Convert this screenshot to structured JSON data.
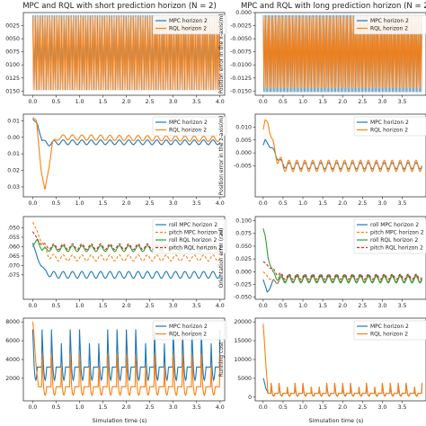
{
  "figure": {
    "title_left": "MPC and RQL with short prediction horizon (N = 2)",
    "title_right": "MPC and RQL with long prediction horizon (N = 2)",
    "xlabel": "Simulation time (s)"
  },
  "colors": {
    "blue": "#1f77b4",
    "orange": "#ff7f0e",
    "green": "#2ca02c",
    "red": "#d62728"
  },
  "chart_data": [
    {
      "id": "p0",
      "type": "line",
      "xlim": [
        -0.2,
        4.1
      ],
      "ylim": [
        -0.0158,
        -0.0
      ],
      "ylabel": "",
      "xticks": [
        0.0,
        0.5,
        1.0,
        1.5,
        2.0,
        2.5,
        3.0,
        3.5,
        4.0
      ],
      "xtick_labels": [
        "0.0",
        "0.5",
        "1.0",
        "1.5",
        "2.0",
        "2.5",
        "3.0",
        "3.5",
        "4.0"
      ],
      "yticks": [
        -0.0025,
        -0.005,
        -0.0075,
        -0.01,
        -0.0125,
        -0.015
      ],
      "ytick_labels": [
        "0025",
        "0050",
        "0075",
        "0100",
        "0125",
        "0150"
      ],
      "legend": "top-right",
      "series": [
        {
          "name": "MPC horizon 2",
          "color": "blue",
          "style": "solid",
          "kind": "band",
          "x": [
            0,
            4
          ],
          "lo": -0.0148,
          "hi": -0.0005
        },
        {
          "name": "RQL horizon 2",
          "color": "orange",
          "style": "solid",
          "kind": "band",
          "x": [
            0,
            4
          ],
          "lo": -0.0148,
          "hi": -0.0008
        }
      ]
    },
    {
      "id": "p1",
      "type": "line",
      "xlim": [
        -0.2,
        4.1
      ],
      "ylim": [
        -0.0158,
        0.0
      ],
      "ylabel": "Position error in the x-axis(m)",
      "xticks": [
        0.0,
        0.5,
        1.0,
        1.5,
        2.0,
        2.5,
        3.0,
        3.5
      ],
      "xtick_labels": [
        "0.0",
        "0.5",
        "1.0",
        "1.5",
        "2.0",
        "2.5",
        "3.0",
        "3.5"
      ],
      "yticks": [
        0.0,
        -0.0025,
        -0.005,
        -0.0075,
        -0.01,
        -0.0125,
        -0.015
      ],
      "ytick_labels": [
        "0.000",
        "-0.0025",
        "-0.0050",
        "-0.0075",
        "-0.0100",
        "-0.0125",
        "-0.0150"
      ],
      "legend": "top-right",
      "series": [
        {
          "name": "MPC horizon 2",
          "color": "blue",
          "style": "solid",
          "kind": "band",
          "x": [
            0,
            4
          ],
          "lo": -0.0152,
          "hi": -0.0005
        },
        {
          "name": "RQL horizon 2",
          "color": "orange",
          "style": "solid",
          "kind": "band",
          "x": [
            0,
            4
          ],
          "lo": -0.0145,
          "hi": -0.0008
        }
      ]
    },
    {
      "id": "p2",
      "type": "line",
      "xlim": [
        -0.2,
        4.1
      ],
      "ylim": [
        -0.036,
        0.014
      ],
      "ylabel": "",
      "xticks": [
        0.0,
        0.5,
        1.0,
        1.5,
        2.0,
        2.5,
        3.0,
        3.5,
        4.0
      ],
      "xtick_labels": [
        "0.0",
        "0.5",
        "1.0",
        "1.5",
        "2.0",
        "2.5",
        "3.0",
        "3.5",
        "4.0"
      ],
      "yticks": [
        0.01,
        0.0,
        -0.01,
        -0.02,
        -0.03
      ],
      "ytick_labels": [
        "0.01",
        "0.00",
        "0.01",
        "0.02",
        "0.03"
      ],
      "legend": "top-right",
      "series": [
        {
          "name": "MPC horizon 2",
          "color": "blue",
          "style": "solid",
          "kind": "osc",
          "x": [
            0,
            0.1,
            0.2,
            0.35,
            0.5,
            4.0
          ],
          "y": [
            0.011,
            0.008,
            -0.002,
            -0.004,
            -0.003,
            -0.003
          ],
          "amp": 0.0014,
          "period": 0.2
        },
        {
          "name": "RQL horizon 2",
          "color": "orange",
          "style": "solid",
          "kind": "osc",
          "x": [
            0,
            0.08,
            0.18,
            0.26,
            0.33,
            0.42,
            0.55,
            4.0
          ],
          "y": [
            0.012,
            0.01,
            -0.02,
            -0.033,
            -0.02,
            -0.004,
            0.0,
            -0.001
          ],
          "amp": 0.0016,
          "period": 0.2
        }
      ]
    },
    {
      "id": "p3",
      "type": "line",
      "xlim": [
        -0.2,
        4.1
      ],
      "ylim": [
        -0.017,
        0.015
      ],
      "ylabel": "Position error in the z-axis(m)",
      "xticks": [
        0.0,
        0.5,
        1.0,
        1.5,
        2.0,
        2.5,
        3.0,
        3.5
      ],
      "xtick_labels": [
        "0.0",
        "0.5",
        "1.0",
        "1.5",
        "2.0",
        "2.5",
        "3.0",
        "3.5"
      ],
      "yticks": [
        0.01,
        0.005,
        0.0,
        -0.005
      ],
      "ytick_labels": [
        "0.010",
        "0.005",
        "0.000",
        "-0.005"
      ],
      "legend": "top-right",
      "series": [
        {
          "name": "MPC horizon 2",
          "color": "blue",
          "style": "solid",
          "kind": "osc",
          "x": [
            0,
            0.05,
            0.15,
            0.3,
            0.45,
            0.6,
            4.0
          ],
          "y": [
            0.003,
            0.005,
            0.003,
            0.0,
            -0.004,
            -0.005,
            -0.005
          ],
          "amp": 0.0012,
          "period": 0.2
        },
        {
          "name": "RQL horizon 2",
          "color": "orange",
          "style": "solid",
          "kind": "osc",
          "x": [
            0,
            0.05,
            0.12,
            0.2,
            0.35,
            0.5,
            0.65,
            4.0
          ],
          "y": [
            0.009,
            0.0125,
            0.012,
            0.006,
            -0.002,
            -0.005,
            -0.005,
            -0.005
          ],
          "amp": 0.0022,
          "period": 0.2
        }
      ]
    },
    {
      "id": "p4",
      "type": "line",
      "xlim": [
        -0.2,
        4.1
      ],
      "ylim": [
        -0.088,
        -0.044
      ],
      "ylabel": "",
      "xticks": [
        0.0,
        0.5,
        1.0,
        1.5,
        2.0,
        2.5,
        3.0,
        3.5,
        4.0
      ],
      "xtick_labels": [
        "0.0",
        "0.5",
        "1.0",
        "1.5",
        "2.0",
        "2.5",
        "3.0",
        "3.5",
        "4.0"
      ],
      "yticks": [
        -0.05,
        -0.055,
        -0.06,
        -0.065,
        -0.07,
        -0.075
      ],
      "ytick_labels": [
        ".050",
        ".055",
        ".060",
        ".065",
        ".070",
        ".075"
      ],
      "legend": "top-right",
      "series": [
        {
          "name": "roll MPC horizon 2",
          "color": "blue",
          "style": "solid",
          "kind": "osc",
          "x": [
            0,
            0.1,
            0.25,
            0.4,
            4.0
          ],
          "y": [
            -0.058,
            -0.066,
            -0.073,
            -0.075,
            -0.075
          ],
          "amp": 0.0018,
          "period": 0.2
        },
        {
          "name": "pitch MPC horizon 2",
          "color": "orange",
          "style": "dashed",
          "kind": "osc",
          "x": [
            0,
            0.1,
            0.2,
            0.35,
            0.5,
            4.0
          ],
          "y": [
            -0.047,
            -0.052,
            -0.058,
            -0.065,
            -0.066,
            -0.066
          ],
          "amp": 0.0016,
          "period": 0.2
        },
        {
          "name": "roll RQL horizon 2",
          "color": "green",
          "style": "solid",
          "kind": "osc",
          "x": [
            0,
            0.1,
            0.2,
            0.35,
            4.0
          ],
          "y": [
            -0.06,
            -0.056,
            -0.062,
            -0.061,
            -0.061
          ],
          "amp": 0.0016,
          "period": 0.2
        },
        {
          "name": "pitch RQL horizon 2",
          "color": "red",
          "style": "dashed",
          "kind": "osc",
          "x": [
            0,
            0.1,
            0.2,
            0.35,
            4.0
          ],
          "y": [
            -0.052,
            -0.056,
            -0.059,
            -0.06,
            -0.06
          ],
          "amp": 0.0015,
          "period": 0.2
        }
      ]
    },
    {
      "id": "p5",
      "type": "line",
      "xlim": [
        -0.2,
        4.1
      ],
      "ylim": [
        -0.054,
        0.108
      ],
      "ylabel": "Orientation error (rad)",
      "xticks": [
        0.0,
        0.5,
        1.0,
        1.5,
        2.0,
        2.5,
        3.0,
        3.5
      ],
      "xtick_labels": [
        "0.0",
        "0.5",
        "1.0",
        "1.5",
        "2.0",
        "2.5",
        "3.0",
        "3.5"
      ],
      "yticks": [
        0.1,
        0.075,
        0.05,
        0.025,
        0.0,
        -0.025,
        -0.05
      ],
      "ytick_labels": [
        "0.100",
        "0.075",
        "0.050",
        "0.025",
        "0.000",
        "-0.025",
        "-0.050"
      ],
      "legend": "top-right",
      "series": [
        {
          "name": "roll MPC horizon 2",
          "color": "blue",
          "style": "solid",
          "kind": "osc",
          "x": [
            0,
            0.1,
            0.25,
            0.5,
            4.0
          ],
          "y": [
            -0.015,
            -0.04,
            -0.02,
            -0.015,
            -0.015
          ],
          "amp": 0.006,
          "period": 0.2
        },
        {
          "name": "pitch MPC horizon 2",
          "color": "orange",
          "style": "dashed",
          "kind": "osc",
          "x": [
            0,
            0.15,
            0.3,
            0.5,
            4.0
          ],
          "y": [
            0.0,
            -0.012,
            -0.02,
            -0.014,
            -0.014
          ],
          "amp": 0.005,
          "period": 0.2
        },
        {
          "name": "roll RQL horizon 2",
          "color": "green",
          "style": "solid",
          "kind": "osc",
          "x": [
            0,
            0.05,
            0.12,
            0.25,
            0.45,
            4.0
          ],
          "y": [
            0.085,
            0.07,
            0.03,
            -0.005,
            -0.014,
            -0.014
          ],
          "amp": 0.008,
          "period": 0.2
        },
        {
          "name": "pitch RQL horizon 2",
          "color": "red",
          "style": "dashed",
          "kind": "osc",
          "x": [
            0,
            0.15,
            0.3,
            0.5,
            4.0
          ],
          "y": [
            0.02,
            0.01,
            0.0,
            -0.01,
            -0.01
          ],
          "amp": 0.005,
          "period": 0.2
        }
      ]
    },
    {
      "id": "p6",
      "type": "line",
      "xlim": [
        -0.2,
        4.1
      ],
      "ylim": [
        -400,
        8400
      ],
      "ylabel": "",
      "xticks": [
        0.0,
        0.5,
        1.0,
        1.5,
        2.0,
        2.5,
        3.0,
        3.5,
        4.0
      ],
      "xtick_labels": [
        "0.0",
        "0.5",
        "1.0",
        "1.5",
        "2.0",
        "2.5",
        "3.0",
        "3.5",
        "4.0"
      ],
      "yticks": [
        8000,
        6000,
        4000,
        2000
      ],
      "ytick_labels": [
        "8000",
        "6000",
        "4000",
        "2000"
      ],
      "legend": "top-right",
      "series": [
        {
          "name": "MPC horizon 2",
          "color": "blue",
          "style": "solid",
          "kind": "spiky",
          "x": [
            0,
            4.0
          ],
          "base": 3200,
          "peak": 7200,
          "low": 1800,
          "period": 0.2
        },
        {
          "name": "RQL horizon 2",
          "color": "orange",
          "style": "solid",
          "kind": "spiky",
          "x": [
            0,
            0.5,
            4.0
          ],
          "base": 1100,
          "peak": 4600,
          "low": 200,
          "period": 0.2,
          "start_peak": 8000
        }
      ]
    },
    {
      "id": "p7",
      "type": "line",
      "xlim": [
        -0.2,
        4.1
      ],
      "ylim": [
        -1000,
        21000
      ],
      "ylabel": "Running cost",
      "xticks": [
        0.0,
        0.5,
        1.0,
        1.5,
        2.0,
        2.5,
        3.0,
        3.5
      ],
      "xtick_labels": [
        "0.0",
        "0.5",
        "1.0",
        "1.5",
        "2.0",
        "2.5",
        "3.0",
        "3.5"
      ],
      "yticks": [
        20000,
        15000,
        10000,
        5000,
        0
      ],
      "ytick_labels": [
        "20000",
        "15000",
        "10000",
        "5000",
        "0"
      ],
      "legend": "top-right",
      "series": [
        {
          "name": "MPC horizon 2",
          "color": "blue",
          "style": "solid",
          "kind": "spiky",
          "x": [
            0,
            4.0
          ],
          "base": 1000,
          "peak": 3500,
          "low": 300,
          "period": 0.2,
          "start_peak": 5000
        },
        {
          "name": "RQL horizon 2",
          "color": "orange",
          "style": "solid",
          "kind": "spiky",
          "x": [
            0,
            4.0
          ],
          "base": 1000,
          "peak": 3800,
          "low": 200,
          "period": 0.2,
          "start_peak": 19500
        }
      ]
    }
  ]
}
